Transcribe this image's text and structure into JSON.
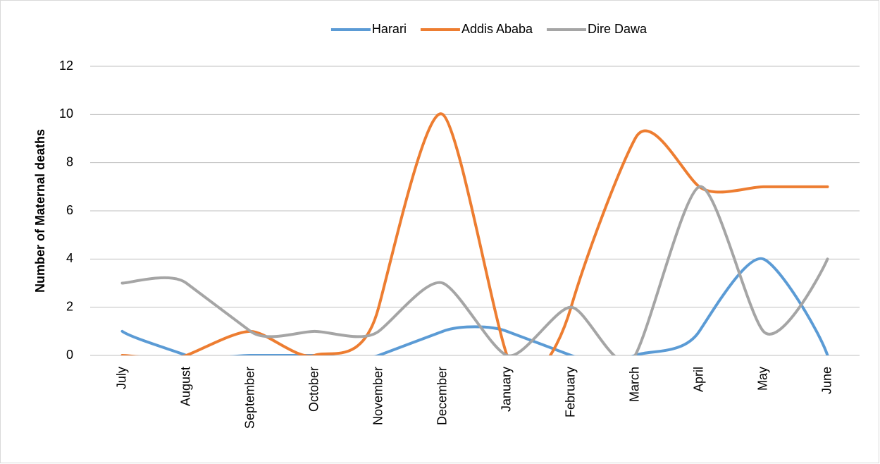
{
  "chart_data": {
    "type": "line",
    "categories": [
      "July",
      "August",
      "September",
      "October",
      "November",
      "December",
      "January",
      "February",
      "March",
      "April",
      "May",
      "June"
    ],
    "series": [
      {
        "name": "Harari",
        "color": "#5b9bd5",
        "values": [
          1,
          0,
          0,
          0,
          0,
          1,
          1,
          0,
          0,
          1,
          4,
          0
        ]
      },
      {
        "name": "Addis Ababa",
        "color": "#ed7d31",
        "values": [
          0,
          0,
          1,
          0,
          2,
          10,
          0,
          2,
          9,
          7,
          7,
          7
        ]
      },
      {
        "name": "Dire Dawa",
        "color": "#a5a5a5",
        "values": [
          3,
          3,
          1,
          1,
          1,
          3,
          0,
          2,
          0,
          7,
          1,
          4
        ]
      }
    ],
    "ylabel": "Number of Maternal deaths",
    "ylim": [
      0,
      12
    ],
    "yticks": [
      0,
      2,
      4,
      6,
      8,
      10,
      12
    ],
    "grid": true,
    "smooth": true,
    "legend": "top"
  }
}
